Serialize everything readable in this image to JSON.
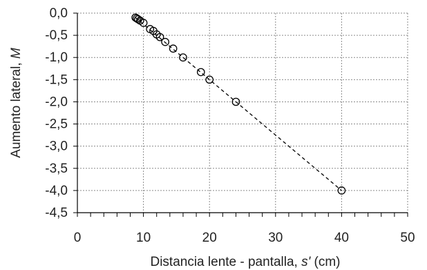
{
  "chart_data": {
    "type": "scatter",
    "xlabel_main": "Distancia lente - pantalla, ",
    "xlabel_var": "s'",
    "xlabel_unit": " (cm)",
    "ylabel_main": "Aumento lateral, ",
    "ylabel_var": "M",
    "xlim": [
      0,
      50
    ],
    "ylim": [
      -4.5,
      0.0
    ],
    "xticks": [
      0,
      10,
      20,
      30,
      40,
      50
    ],
    "xtick_labels": [
      "0",
      "10",
      "20",
      "30",
      "40",
      "50"
    ],
    "yticks": [
      0.0,
      -0.5,
      -1.0,
      -1.5,
      -2.0,
      -2.5,
      -3.0,
      -3.5,
      -4.0,
      -4.5
    ],
    "ytick_labels": [
      "0,0",
      "-0,5",
      "-1,0",
      "-1,5",
      "-2,0",
      "-2,5",
      "-3,0",
      "-3,5",
      "-4,0",
      "-4,5"
    ],
    "grid": true,
    "points": [
      {
        "x": 8.8,
        "y": -0.1
      },
      {
        "x": 9.0,
        "y": -0.12
      },
      {
        "x": 9.2,
        "y": -0.14
      },
      {
        "x": 9.5,
        "y": -0.17
      },
      {
        "x": 10.0,
        "y": -0.22
      },
      {
        "x": 11.0,
        "y": -0.36
      },
      {
        "x": 11.5,
        "y": -0.4
      },
      {
        "x": 12.0,
        "y": -0.48
      },
      {
        "x": 12.5,
        "y": -0.54
      },
      {
        "x": 13.3,
        "y": -0.65
      },
      {
        "x": 14.5,
        "y": -0.8
      },
      {
        "x": 16.0,
        "y": -1.0
      },
      {
        "x": 18.7,
        "y": -1.33
      },
      {
        "x": 20.0,
        "y": -1.5
      },
      {
        "x": 24.0,
        "y": -2.0
      },
      {
        "x": 40.0,
        "y": -4.0
      }
    ],
    "trendline": {
      "style": "dashed",
      "x": [
        8.8,
        40.0
      ],
      "y": [
        -0.1,
        -4.0
      ]
    }
  }
}
